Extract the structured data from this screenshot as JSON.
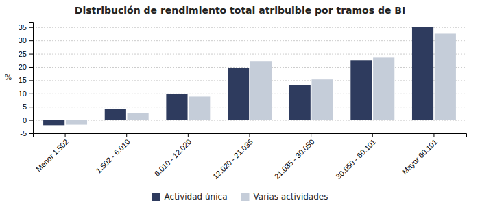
{
  "chart_data": {
    "type": "bar",
    "title": "Distribución de rendimiento total atribuible por tramos de BI",
    "categories": [
      "Menor 1.502",
      "1.502 - 6.010",
      "6.010 - 12.020",
      "12.020 - 21.035",
      "21.035 - 30.050",
      "30.050 - 60.101",
      "Mayor 60.101"
    ],
    "series": [
      {
        "name": "Actividad única",
        "color": "#2E3B5E",
        "values": [
          -2.0,
          4.2,
          9.8,
          19.5,
          13.2,
          22.5,
          35.0
        ]
      },
      {
        "name": "Varias actividades",
        "color": "#C5CDD9",
        "values": [
          -1.8,
          2.7,
          8.8,
          22.0,
          15.3,
          23.5,
          32.5
        ]
      }
    ],
    "ylabel": "%",
    "ylim": [
      -5,
      37
    ],
    "yticks": [
      -5,
      0,
      5,
      10,
      15,
      20,
      25,
      30,
      35
    ],
    "grid": true,
    "legend": "bottom"
  }
}
